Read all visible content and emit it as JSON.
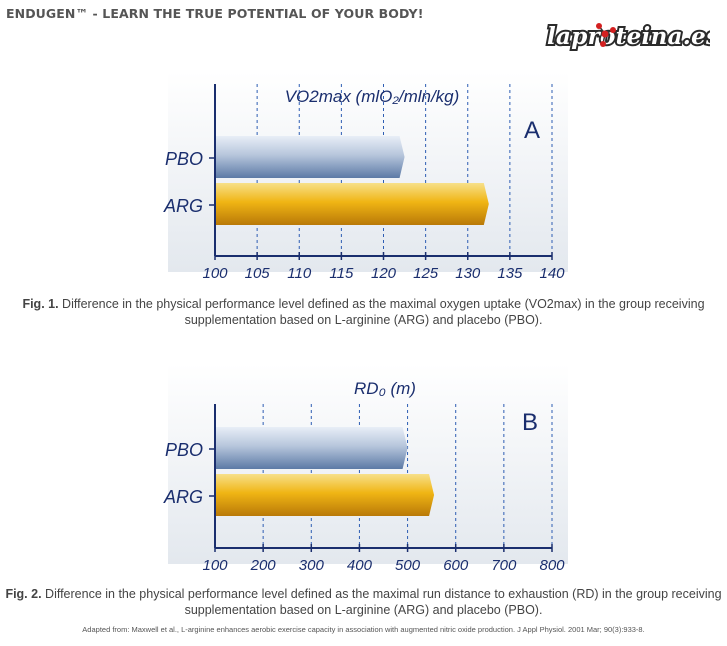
{
  "header": {
    "title": "ENDUGEN™ - LEARN THE TRUE POTENTIAL OF YOUR BODY!"
  },
  "logo": {
    "text": "laproteina.es"
  },
  "colors": {
    "pbo_bar": "#8fa6c6",
    "arg_bar": "#e4a60c",
    "axis": "#1a2e6e",
    "grid": "#2d5db3",
    "panel": "#e9edf2"
  },
  "chart_data": [
    {
      "type": "bar",
      "orientation": "horizontal",
      "title": "VO2max (mlO₂/mln/kg)",
      "panel_label": "A",
      "categories": [
        "PBO",
        "ARG"
      ],
      "values": [
        122.5,
        132.5
      ],
      "xlim": [
        100,
        140
      ],
      "xticks": [
        "100",
        "105",
        "110",
        "115",
        "120",
        "125",
        "130",
        "135",
        "140"
      ],
      "grid": true
    },
    {
      "type": "bar",
      "orientation": "horizontal",
      "title": "RD₀ (m)",
      "panel_label": "B",
      "categories": [
        "PBO",
        "ARG"
      ],
      "values": [
        500,
        555
      ],
      "xlim": [
        100,
        800
      ],
      "xticks": [
        "100",
        "200",
        "300",
        "400",
        "500",
        "600",
        "700",
        "800"
      ],
      "grid": true
    }
  ],
  "captions": [
    {
      "label": "Fig. 1.",
      "text": " Difference in the physical performance level defined as the maximal oxygen uptake (VO2max) in the group receiving",
      "text2": "supplementation based on L-arginine (ARG) and placebo (PBO)."
    },
    {
      "label": "Fig. 2.",
      "text": " Difference in the physical performance level defined as the maximal run distance to exhaustion (RD) in the group receiving",
      "text2": "supplementation based on L-arginine (ARG) and placebo (PBO)."
    }
  ],
  "citation": "Adapted from: Maxwell et al., L-arginine enhances aerobic exercise capacity in association with augmented nitric oxide production. J Appl Physiol. 2001 Mar; 90(3):933-8."
}
